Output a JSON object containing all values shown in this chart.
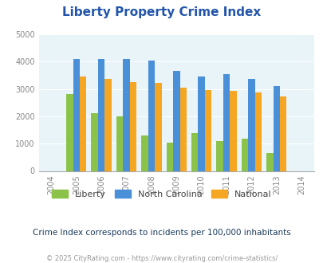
{
  "title": "Liberty Property Crime Index",
  "title_color": "#2255aa",
  "years": [
    2004,
    2005,
    2006,
    2007,
    2008,
    2009,
    2010,
    2011,
    2012,
    2013,
    2014
  ],
  "bar_years": [
    2005,
    2006,
    2007,
    2008,
    2009,
    2010,
    2011,
    2012,
    2013
  ],
  "liberty": [
    2800,
    2100,
    2000,
    1300,
    1020,
    1380,
    1080,
    1180,
    660
  ],
  "north_carolina": [
    4080,
    4100,
    4080,
    4040,
    3660,
    3440,
    3540,
    3360,
    3110
  ],
  "national": [
    3440,
    3360,
    3240,
    3210,
    3050,
    2950,
    2940,
    2880,
    2720
  ],
  "liberty_color": "#8bc34a",
  "nc_color": "#4a90d9",
  "national_color": "#f5a623",
  "bg_color": "#e8f4f8",
  "ylim": [
    0,
    5000
  ],
  "yticks": [
    0,
    1000,
    2000,
    3000,
    4000,
    5000
  ],
  "footnote": "Crime Index corresponds to incidents per 100,000 inhabitants",
  "copyright": "© 2025 CityRating.com - https://www.cityrating.com/crime-statistics/",
  "legend_labels": [
    "Liberty",
    "North Carolina",
    "National"
  ],
  "bar_width": 0.27
}
